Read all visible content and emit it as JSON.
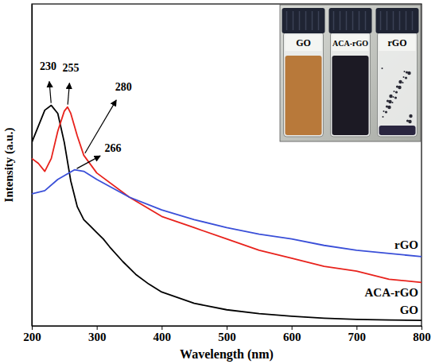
{
  "chart_data": {
    "type": "line",
    "x_label": "Wavelength (nm)",
    "y_label": "Intensity (a.u.)",
    "xlim": [
      200,
      800
    ],
    "xticks": [
      200,
      300,
      400,
      500,
      600,
      700,
      800
    ],
    "ylim": [
      0,
      1
    ],
    "tick_labels": "x",
    "grid": false,
    "series": [
      {
        "name": "GO",
        "color": "#000000",
        "x": [
          200,
          210,
          220,
          230,
          240,
          250,
          260,
          270,
          280,
          290,
          300,
          310,
          320,
          340,
          360,
          380,
          400,
          450,
          500,
          550,
          600,
          650,
          700,
          750,
          800
        ],
        "values": [
          0.57,
          0.62,
          0.67,
          0.685,
          0.66,
          0.57,
          0.45,
          0.37,
          0.33,
          0.31,
          0.29,
          0.27,
          0.245,
          0.2,
          0.16,
          0.13,
          0.105,
          0.07,
          0.05,
          0.038,
          0.03,
          0.024,
          0.02,
          0.018,
          0.017
        ]
      },
      {
        "name": "ACA-rGO",
        "color": "#e8221c",
        "x": [
          200,
          210,
          220,
          230,
          240,
          250,
          255,
          260,
          270,
          280,
          300,
          350,
          400,
          450,
          500,
          550,
          600,
          650,
          700,
          750,
          800
        ],
        "values": [
          0.52,
          0.505,
          0.48,
          0.52,
          0.605,
          0.667,
          0.68,
          0.66,
          0.59,
          0.53,
          0.475,
          0.4,
          0.34,
          0.305,
          0.27,
          0.235,
          0.21,
          0.185,
          0.17,
          0.145,
          0.135
        ]
      },
      {
        "name": "rGO",
        "color": "#3a4fd8",
        "x": [
          200,
          220,
          240,
          266,
          280,
          300,
          350,
          400,
          450,
          500,
          550,
          600,
          650,
          700,
          750,
          800
        ],
        "values": [
          0.41,
          0.42,
          0.455,
          0.485,
          0.48,
          0.455,
          0.4,
          0.36,
          0.33,
          0.305,
          0.285,
          0.27,
          0.25,
          0.235,
          0.225,
          0.215
        ]
      }
    ],
    "annotations": [
      {
        "text": "230",
        "x": 230,
        "series": 0
      },
      {
        "text": "255",
        "x": 255,
        "series": 1
      },
      {
        "text": "280",
        "x": 280,
        "series": 1
      },
      {
        "text": "266",
        "x": 266,
        "series": 2
      }
    ],
    "inset_labels": [
      "GO",
      "ACA-rGO",
      "rGO"
    ]
  }
}
